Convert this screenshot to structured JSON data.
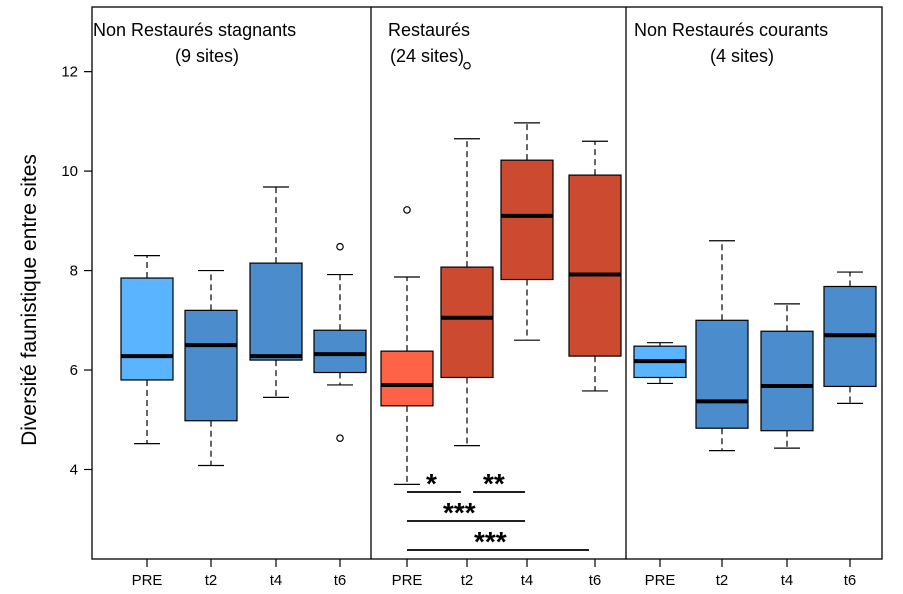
{
  "colors": {
    "pre_blue": "#5ab4ff",
    "blue": "#4a8ccc",
    "pre_red": "#ff6347",
    "red": "#cc4a30",
    "outline": "#000000"
  },
  "chart_data": {
    "type": "boxplot",
    "ylabel": "Diversité faunistique entre sites",
    "ylim": [
      2.2,
      13.3
    ],
    "yticks": [
      4,
      6,
      8,
      10,
      12
    ],
    "categories": [
      "PRE",
      "t2",
      "t4",
      "t6"
    ],
    "panels": [
      {
        "title_line1": "Non Restaurés stagnants",
        "title_line2": "(9 sites)",
        "boxes": [
          {
            "category": "PRE",
            "whisker_low": 4.52,
            "q1": 5.8,
            "median": 6.28,
            "q3": 7.85,
            "whisker_high": 8.3,
            "outliers": [],
            "color": "#5ab4ff"
          },
          {
            "category": "t2",
            "whisker_low": 4.08,
            "q1": 4.98,
            "median": 6.5,
            "q3": 7.2,
            "whisker_high": 8.0,
            "outliers": [],
            "color": "#4a8ccc"
          },
          {
            "category": "t4",
            "whisker_low": 5.45,
            "q1": 6.2,
            "median": 6.28,
            "q3": 8.15,
            "whisker_high": 9.68,
            "outliers": [],
            "color": "#4a8ccc"
          },
          {
            "category": "t6",
            "whisker_low": 5.7,
            "q1": 5.95,
            "median": 6.32,
            "q3": 6.8,
            "whisker_high": 7.92,
            "outliers": [
              8.48,
              4.63
            ],
            "color": "#4a8ccc"
          }
        ]
      },
      {
        "title_line1": "Restaurés",
        "title_line2": "(24 sites)",
        "boxes": [
          {
            "category": "PRE",
            "whisker_low": 3.7,
            "q1": 5.28,
            "median": 5.7,
            "q3": 6.38,
            "whisker_high": 7.87,
            "outliers": [
              9.22
            ],
            "color": "#ff6347"
          },
          {
            "category": "t2",
            "whisker_low": 4.48,
            "q1": 5.85,
            "median": 7.05,
            "q3": 8.07,
            "whisker_high": 10.65,
            "outliers": [
              12.12
            ],
            "color": "#cc4a30"
          },
          {
            "category": "t4",
            "whisker_low": 6.6,
            "q1": 7.82,
            "median": 9.1,
            "q3": 10.22,
            "whisker_high": 10.97,
            "outliers": [],
            "color": "#cc4a30"
          },
          {
            "category": "t6",
            "whisker_low": 5.58,
            "q1": 6.28,
            "median": 7.92,
            "q3": 9.92,
            "whisker_high": 10.6,
            "outliers": [],
            "color": "#cc4a30"
          }
        ],
        "significance": [
          {
            "from": "PRE",
            "to": "t2",
            "label": "*"
          },
          {
            "from": "t2",
            "to": "t4",
            "label": "**"
          },
          {
            "from": "PRE",
            "to": "t4",
            "label": "***"
          },
          {
            "from": "PRE",
            "to": "t6",
            "label": "***"
          }
        ]
      },
      {
        "title_line1": "Non Restaurés courants",
        "title_line2": "(4 sites)",
        "boxes": [
          {
            "category": "PRE",
            "whisker_low": 5.73,
            "q1": 5.85,
            "median": 6.18,
            "q3": 6.48,
            "whisker_high": 6.55,
            "outliers": [],
            "color": "#5ab4ff"
          },
          {
            "category": "t2",
            "whisker_low": 4.38,
            "q1": 4.83,
            "median": 5.37,
            "q3": 7.0,
            "whisker_high": 8.6,
            "outliers": [],
            "color": "#4a8ccc"
          },
          {
            "category": "t4",
            "whisker_low": 4.43,
            "q1": 4.78,
            "median": 5.68,
            "q3": 6.78,
            "whisker_high": 7.33,
            "outliers": [],
            "color": "#4a8ccc"
          },
          {
            "category": "t6",
            "whisker_low": 5.33,
            "q1": 5.67,
            "median": 6.7,
            "q3": 7.68,
            "whisker_high": 7.97,
            "outliers": [],
            "color": "#4a8ccc"
          }
        ]
      }
    ]
  }
}
